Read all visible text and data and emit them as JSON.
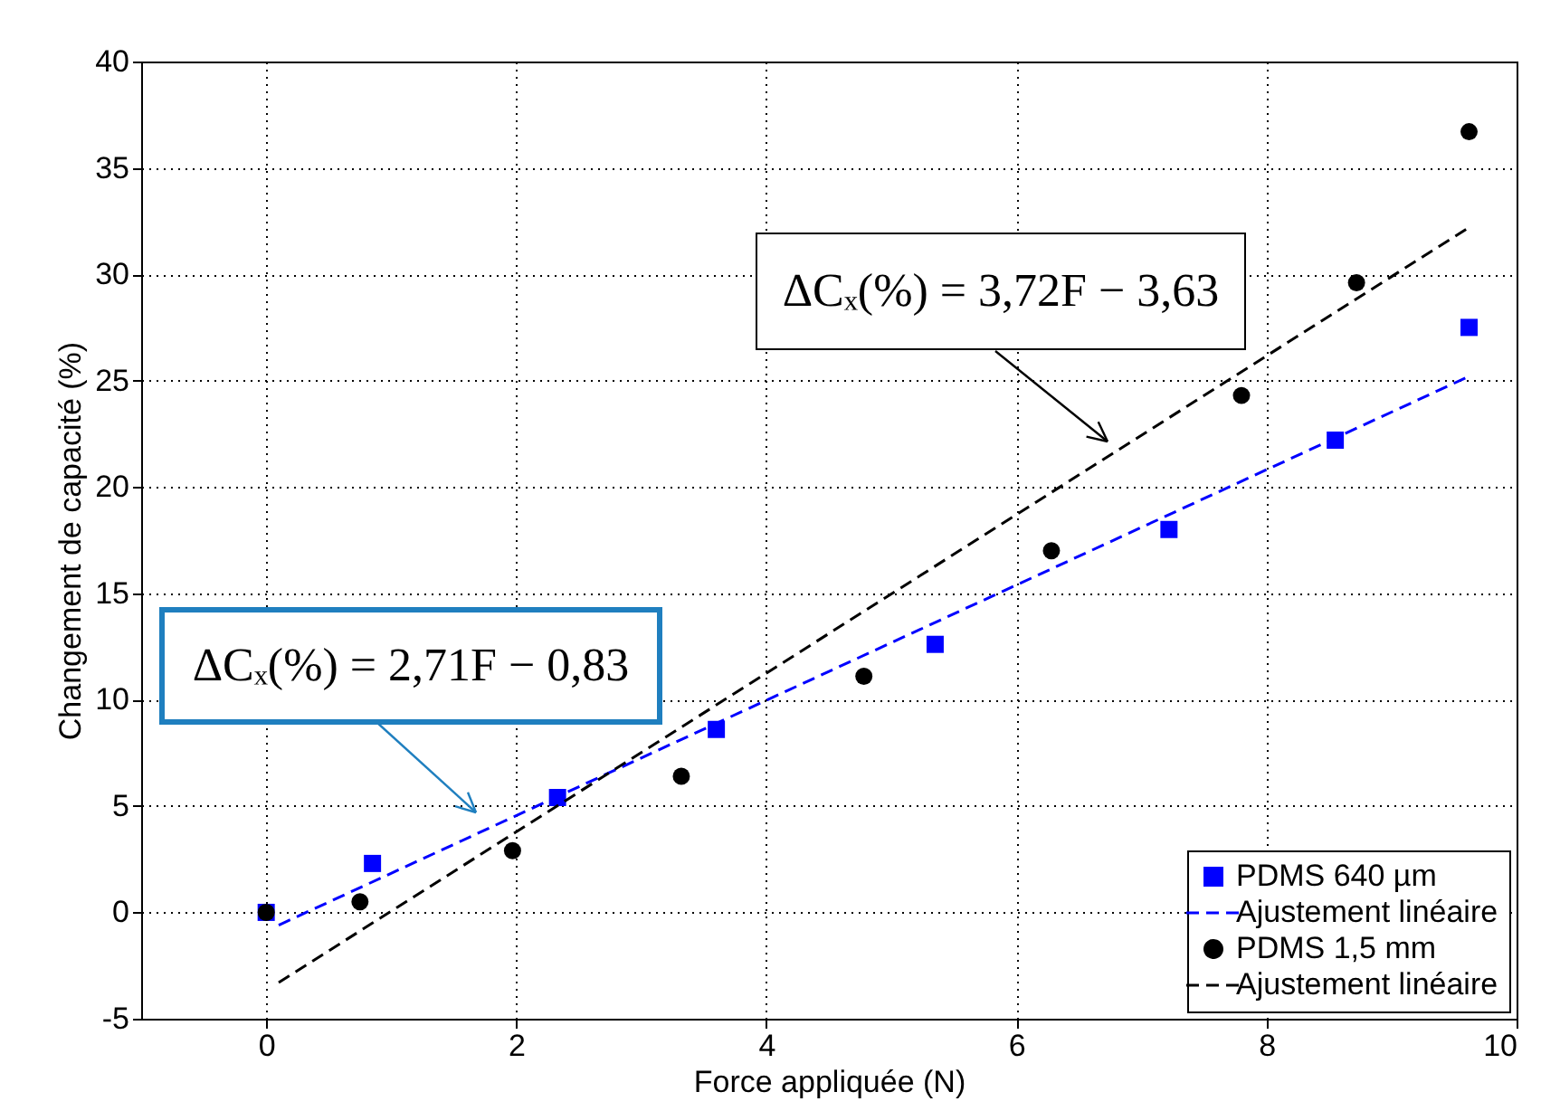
{
  "chart_data": {
    "type": "scatter",
    "xlabel": "Force appliquée (N)",
    "ylabel": "Changement de capacité (%)",
    "xlim": [
      -1,
      10
    ],
    "xticks": [
      0,
      2,
      4,
      6,
      8,
      10
    ],
    "ylim": [
      -5,
      40
    ],
    "yticks": [
      -5,
      0,
      5,
      10,
      15,
      20,
      25,
      30,
      35,
      40
    ],
    "grid": true,
    "legend": "bottom right",
    "series": [
      {
        "name": "PDMS 640 µm",
        "marker": "square",
        "color": "#0000ff",
        "x": [
          0,
          0.85,
          2.33,
          3.6,
          5.35,
          7.22,
          8.55,
          9.62
        ],
        "values": [
          0,
          2.3,
          5.4,
          8.6,
          12.6,
          18,
          22.2,
          27.5
        ]
      },
      {
        "name": "Ajustement linéaire",
        "type": "line",
        "line_style": "dashed",
        "color": "#0000ff",
        "x": [
          0.1,
          9.62
        ],
        "values": [
          -0.6,
          25.2
        ]
      },
      {
        "name": "PDMS 1,5 mm",
        "marker": "circle",
        "color": "#000000",
        "x": [
          0,
          0.75,
          1.97,
          3.32,
          4.78,
          6.28,
          7.8,
          8.72,
          9.62
        ],
        "values": [
          0,
          0.5,
          2.9,
          6.4,
          11.1,
          17,
          24.3,
          29.6,
          36.7
        ]
      },
      {
        "name": "Ajustement linéaire",
        "type": "line",
        "line_style": "dashed",
        "color": "#000000",
        "x": [
          0.1,
          9.62
        ],
        "values": [
          -3.3,
          32.2
        ]
      }
    ],
    "annotations": [
      "ΔCₓ(%) = 2,71F − 0,83",
      "ΔCₓ(%) = 3,72F − 3,63"
    ]
  }
}
